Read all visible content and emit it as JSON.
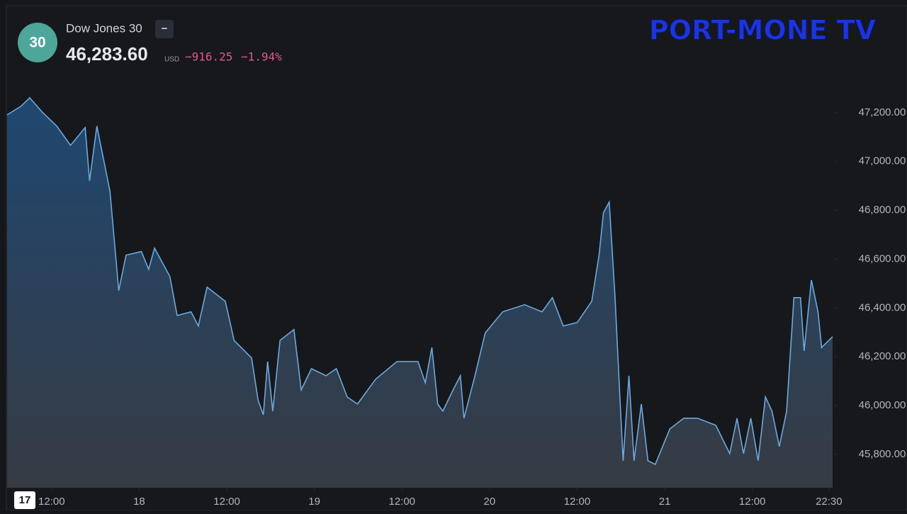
{
  "header": {
    "badge": "30",
    "symbol": "Dow Jones 30",
    "collapse": "−",
    "price": "46,283.60",
    "currency": "USD",
    "change": "−916.25",
    "change_percent": "−1.94%",
    "logo": "PORT-MONE TV"
  },
  "chart_data": {
    "type": "area",
    "color": "#6fa8dc",
    "series": [
      {
        "name": "Dow Jones 30",
        "x": [
          5.9,
          7.8,
          9.0,
          10.7,
          12.7,
          14.6,
          16.6,
          17.2,
          18.2,
          20.0,
          21.2,
          22.2,
          24.3,
          25.3,
          26.1,
          28.2,
          29.2,
          31.1,
          32.1,
          33.3,
          35.8,
          37.0,
          39.4,
          40.3,
          41.0,
          41.6,
          42.3,
          43.3,
          45.2,
          46.2,
          47.6,
          49.6,
          51.0,
          52.5,
          53.9,
          56.4,
          59.3,
          62.2,
          63.2,
          64.1,
          64.9,
          65.6,
          67.0,
          68.0,
          68.5,
          70.0,
          71.4,
          73.8,
          76.8,
          79.2,
          80.6,
          82.1,
          84.0,
          86.0,
          87.0,
          87.6,
          88.4,
          89.2,
          89.9,
          90.3,
          91.1,
          91.8,
          92.8,
          93.7,
          94.7,
          96.7,
          98.6,
          100.5,
          103.0,
          104.9,
          105.9,
          106.8,
          107.8,
          108.8,
          109.8,
          110.7,
          111.7,
          112.7,
          113.7,
          114.6,
          115.1,
          116.1,
          117.0,
          117.5,
          119.0
        ],
        "values": [
          47191,
          47226,
          47261,
          47203,
          47145,
          47066,
          47139,
          46921,
          47145,
          46878,
          46471,
          46616,
          46631,
          46558,
          46645,
          46529,
          46369,
          46384,
          46326,
          46485,
          46427,
          46267,
          46195,
          46021,
          45962,
          46180,
          45977,
          46267,
          46311,
          46064,
          46151,
          46122,
          46151,
          46035,
          46006,
          46108,
          46180,
          46180,
          46093,
          46238,
          46006,
          45977,
          46064,
          46122,
          45948,
          46122,
          46297,
          46384,
          46413,
          46384,
          46442,
          46326,
          46340,
          46427,
          46616,
          46790,
          46834,
          46442,
          46006,
          45774,
          46122,
          45774,
          46006,
          45774,
          45759,
          45904,
          45948,
          45948,
          45919,
          45803,
          45948,
          45803,
          45948,
          45774,
          46035,
          45977,
          45832,
          45977,
          46442,
          46442,
          46224,
          46514,
          46384,
          46238,
          46282
        ]
      }
    ],
    "xlim": [
      5.9,
      119.0
    ],
    "xticks": [
      {
        "value": 12,
        "label": "12:00"
      },
      {
        "value": 24,
        "label": "18"
      },
      {
        "value": 36,
        "label": "12:00"
      },
      {
        "value": 48,
        "label": "19"
      },
      {
        "value": 60,
        "label": "12:00"
      },
      {
        "value": 72,
        "label": "20"
      },
      {
        "value": 84,
        "label": "12:00"
      },
      {
        "value": 96,
        "label": "21"
      },
      {
        "value": 108,
        "label": "12:00"
      },
      {
        "value": 118.5,
        "label": "22:30"
      }
    ],
    "ylim": [
      45663,
      47313
    ],
    "yticks": [
      {
        "value": 45800,
        "label": "45,800.00"
      },
      {
        "value": 46000,
        "label": "46,000.00"
      },
      {
        "value": 46200,
        "label": "46,200.00"
      },
      {
        "value": 46400,
        "label": "46,400.00"
      },
      {
        "value": 46600,
        "label": "46,600.00"
      },
      {
        "value": 46800,
        "label": "46,800.00"
      },
      {
        "value": 47000,
        "label": "47,000.00"
      },
      {
        "value": 47200,
        "label": "47,200.00"
      }
    ]
  }
}
